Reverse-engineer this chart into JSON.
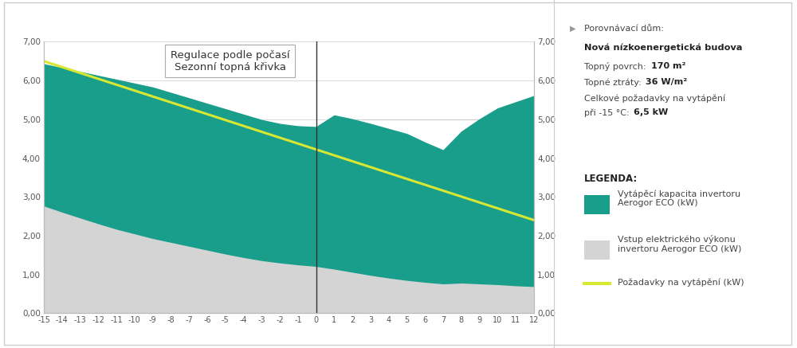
{
  "title_line1": "Regulace podle počasí",
  "title_line2": "Sezonní topná křivka",
  "x_ticks": [
    -15,
    -14,
    -13,
    -12,
    -11,
    -10,
    -9,
    -8,
    -7,
    -6,
    -5,
    -4,
    -3,
    -2,
    -1,
    0,
    1,
    2,
    3,
    4,
    5,
    6,
    7,
    8,
    9,
    10,
    11,
    12
  ],
  "x_min": -15,
  "x_max": 12,
  "y_min": 0,
  "y_max": 7.0,
  "y_ticks": [
    0.0,
    1.0,
    2.0,
    3.0,
    4.0,
    5.0,
    6.0,
    7.0
  ],
  "y_tick_labels": [
    "0,00",
    "1,00",
    "2,00",
    "3,00",
    "4,00",
    "5,00",
    "6,00",
    "7,00"
  ],
  "teal_top_x": [
    -15,
    -14,
    -13,
    -12,
    -11,
    -10,
    -9,
    -8,
    -7,
    -6,
    -5,
    -4,
    -3,
    -2,
    -1,
    0,
    1,
    2,
    3,
    4,
    5,
    6,
    7,
    8,
    9,
    10,
    11,
    12
  ],
  "teal_top_y": [
    6.42,
    6.32,
    6.22,
    6.12,
    6.02,
    5.92,
    5.82,
    5.68,
    5.54,
    5.4,
    5.26,
    5.12,
    4.98,
    4.88,
    4.82,
    4.8,
    5.1,
    5.0,
    4.88,
    4.75,
    4.62,
    4.4,
    4.2,
    4.68,
    5.0,
    5.28,
    5.44,
    5.6
  ],
  "gray_top_x": [
    -15,
    -14,
    -13,
    -12,
    -11,
    -10,
    -9,
    -8,
    -7,
    -6,
    -5,
    -4,
    -3,
    -2,
    -1,
    0,
    1,
    2,
    3,
    4,
    5,
    6,
    7,
    8,
    9,
    10,
    11,
    12
  ],
  "gray_top_y": [
    2.78,
    2.62,
    2.47,
    2.32,
    2.18,
    2.06,
    1.94,
    1.84,
    1.74,
    1.64,
    1.54,
    1.45,
    1.37,
    1.31,
    1.26,
    1.22,
    1.15,
    1.07,
    0.99,
    0.92,
    0.86,
    0.81,
    0.77,
    0.79,
    0.77,
    0.75,
    0.72,
    0.7
  ],
  "yellow_x": [
    -15,
    12
  ],
  "yellow_y": [
    6.5,
    2.4
  ],
  "teal_color": "#1a9e8c",
  "gray_color": "#d4d4d4",
  "yellow_color": "#d8e832",
  "vline_x": 0,
  "hline_y": 5.0,
  "hline_x_start": 1,
  "hline_x_end": 12,
  "background_color": "#ffffff",
  "grid_color": "#cccccc"
}
